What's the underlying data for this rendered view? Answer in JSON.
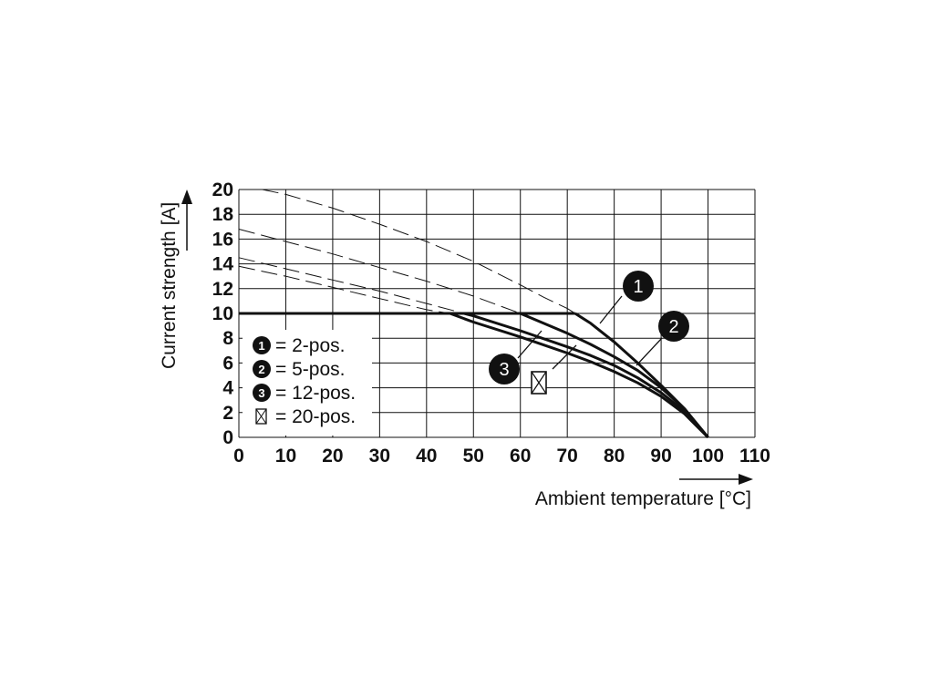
{
  "chart_data": {
    "type": "line",
    "xlabel": "Ambient temperature [°C]",
    "ylabel": "Current strength [A]",
    "xlim": [
      0,
      110
    ],
    "ylim": [
      0,
      20
    ],
    "xticks": [
      "0",
      "10",
      "20",
      "30",
      "40",
      "50",
      "60",
      "70",
      "80",
      "90",
      "100",
      "110"
    ],
    "yticks": [
      "0",
      "2",
      "4",
      "6",
      "8",
      "10",
      "12",
      "14",
      "16",
      "18",
      "20"
    ],
    "grid": true,
    "legend": {
      "placement": "left",
      "entries": [
        {
          "marker": "1",
          "label": "= 2-pos."
        },
        {
          "marker": "2",
          "label": "= 5-pos."
        },
        {
          "marker": "3",
          "label": "= 12-pos."
        },
        {
          "marker": "box-x",
          "label": "= 20-pos."
        }
      ]
    },
    "max_current_limit": 10,
    "series": [
      {
        "marker": "1",
        "max_temp": 100,
        "points": [
          [
            5,
            20
          ],
          [
            10,
            19.6
          ],
          [
            20,
            18.5
          ],
          [
            30,
            17.2
          ],
          [
            40,
            15.8
          ],
          [
            50,
            14.2
          ],
          [
            60,
            12.3
          ],
          [
            65,
            11.3
          ],
          [
            70,
            10.4
          ],
          [
            75,
            9.2
          ],
          [
            80,
            7.7
          ],
          [
            85,
            6.0
          ],
          [
            90,
            4.2
          ],
          [
            95,
            2.3
          ],
          [
            100,
            0
          ]
        ]
      },
      {
        "marker": "2",
        "max_temp": 100,
        "points": [
          [
            0,
            16.8
          ],
          [
            10,
            15.8
          ],
          [
            20,
            14.8
          ],
          [
            30,
            13.7
          ],
          [
            40,
            12.6
          ],
          [
            50,
            11.4
          ],
          [
            60,
            10.0
          ],
          [
            70,
            8.4
          ],
          [
            75,
            7.5
          ],
          [
            80,
            6.5
          ],
          [
            85,
            5.4
          ],
          [
            90,
            4.0
          ],
          [
            95,
            2.3
          ],
          [
            100,
            0
          ]
        ]
      },
      {
        "marker": "3",
        "max_temp": 100,
        "points": [
          [
            0,
            14.5
          ],
          [
            10,
            13.6
          ],
          [
            20,
            12.7
          ],
          [
            30,
            11.8
          ],
          [
            40,
            10.8
          ],
          [
            50,
            9.8
          ],
          [
            60,
            8.6
          ],
          [
            70,
            7.3
          ],
          [
            75,
            6.6
          ],
          [
            80,
            5.8
          ],
          [
            85,
            4.8
          ],
          [
            90,
            3.6
          ],
          [
            95,
            2.1
          ],
          [
            100,
            0
          ]
        ]
      },
      {
        "marker": "box-x",
        "max_temp": 100,
        "points": [
          [
            0,
            13.8
          ],
          [
            10,
            13.0
          ],
          [
            20,
            12.1
          ],
          [
            30,
            11.2
          ],
          [
            40,
            10.3
          ],
          [
            45,
            10.0
          ],
          [
            50,
            9.3
          ],
          [
            60,
            8.1
          ],
          [
            70,
            6.8
          ],
          [
            75,
            6.1
          ],
          [
            80,
            5.3
          ],
          [
            85,
            4.4
          ],
          [
            90,
            3.3
          ],
          [
            95,
            1.9
          ],
          [
            100,
            0
          ]
        ]
      }
    ],
    "callouts": [
      {
        "marker": "1",
        "text": "1"
      },
      {
        "marker": "2",
        "text": "2"
      },
      {
        "marker": "3",
        "text": "3"
      },
      {
        "marker": "box-x",
        "text": ""
      }
    ]
  }
}
